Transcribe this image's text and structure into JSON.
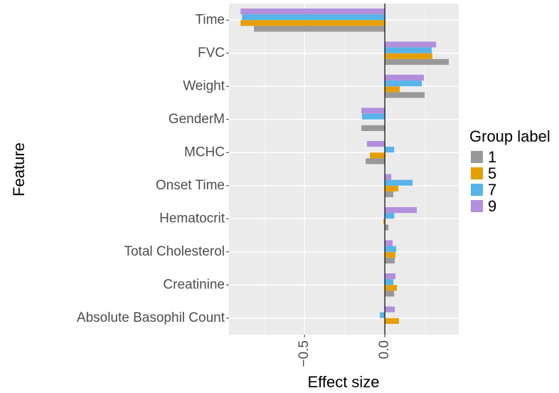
{
  "chart_data": {
    "type": "bar",
    "orientation": "horizontal",
    "x_label": "Effect size",
    "y_label": "Feature",
    "categories": [
      "Time",
      "FVC",
      "Weight",
      "GenderM",
      "MCHC",
      "Onset Time",
      "Hematocrit",
      "Total Cholesterol",
      "Creatinine",
      "Absolute Basophil Count"
    ],
    "series": [
      {
        "name": "1",
        "color": "#999999",
        "values": [
          -0.814,
          0.398,
          0.248,
          -0.146,
          -0.119,
          0.053,
          0.022,
          0.062,
          0.058,
          0
        ]
      },
      {
        "name": "5",
        "color": "#E69F00",
        "values": [
          -0.898,
          0.296,
          0.093,
          0,
          -0.093,
          0.084,
          -0.009,
          0.066,
          0.075,
          0.088
        ]
      },
      {
        "name": "7",
        "color": "#56B4E9",
        "values": [
          -0.889,
          0.292,
          0.23,
          -0.142,
          0.058,
          0.173,
          0.058,
          0.071,
          0.053,
          -0.031
        ]
      },
      {
        "name": "9",
        "color": "#B18FDD",
        "values": [
          -0.898,
          0.319,
          0.243,
          -0.146,
          -0.111,
          0.04,
          0.199,
          0.049,
          0.066,
          0.062
        ]
      }
    ],
    "xlim": [
      -0.97,
      0.46
    ],
    "xticks": [
      {
        "value": -0.5,
        "label": "−0.5"
      },
      {
        "value": 0,
        "label": "0.0"
      }
    ],
    "grid": true,
    "zero_line": true,
    "legend_title": "Group label",
    "legend_position": "right"
  }
}
